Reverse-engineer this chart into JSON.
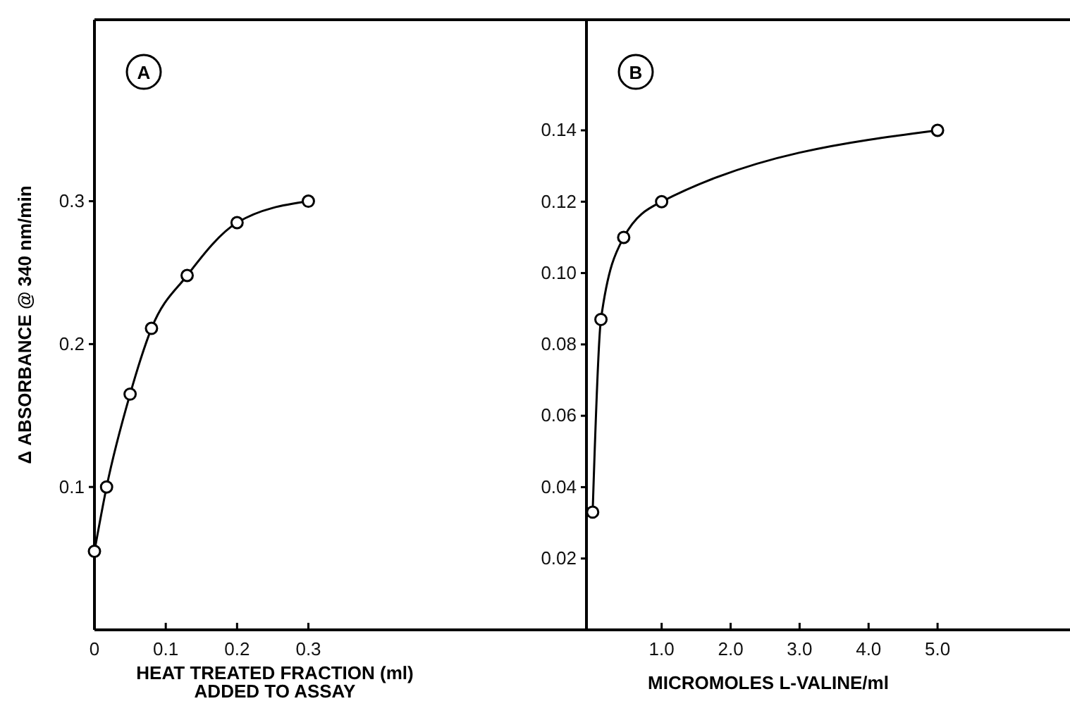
{
  "chart_data": [
    {
      "type": "line",
      "xlabel": "HEAT TREATED FRACTION (ml)\nADDED TO ASSAY",
      "ylabel": "Δ ABSORBANCE @ 340 nm/min",
      "annotations": [
        "A"
      ],
      "x": [
        0,
        0.017,
        0.05,
        0.08,
        0.13,
        0.2,
        0.3
      ],
      "series": [
        {
          "color": "#000000",
          "values": [
            0.055,
            0.1,
            0.165,
            0.211,
            0.248,
            0.285,
            0.3
          ]
        }
      ],
      "xlim": [
        0,
        0.69
      ],
      "ylim": [
        0,
        0.427
      ],
      "xticks": [
        0,
        0.1,
        0.2,
        0.3
      ],
      "yticks": [
        0.1,
        0.2,
        0.3
      ],
      "marker": "circle",
      "line_style": "solid"
    },
    {
      "type": "line",
      "xlabel": "MICROMOLES L-VALINE/ml",
      "annotations": [
        "B"
      ],
      "x": [
        0,
        0.12,
        0.45,
        1.0,
        5.0
      ],
      "series": [
        {
          "color": "#000000",
          "values": [
            0.033,
            0.087,
            0.11,
            0.12,
            0.14
          ]
        }
      ],
      "xlim": [
        -0.09,
        6.92
      ],
      "ylim": [
        0,
        0.171
      ],
      "xticks": [
        {
          "value": 1,
          "label": "1.0"
        },
        {
          "value": 2,
          "label": "2.0"
        },
        {
          "value": 3,
          "label": "3.0"
        },
        {
          "value": 4,
          "label": "4.0"
        },
        {
          "value": 5,
          "label": "5.0"
        }
      ],
      "yticks": [
        {
          "value": 0.02,
          "label": "0.02"
        },
        {
          "value": 0.04,
          "label": "0.04"
        },
        {
          "value": 0.06,
          "label": "0.06"
        },
        {
          "value": 0.08,
          "label": "0.08"
        },
        {
          "value": 0.1,
          "label": "0.10"
        },
        {
          "value": 0.12,
          "label": "0.12"
        },
        {
          "value": 0.14,
          "label": "0.14"
        }
      ],
      "marker": "circle",
      "line_style": "solid"
    }
  ]
}
